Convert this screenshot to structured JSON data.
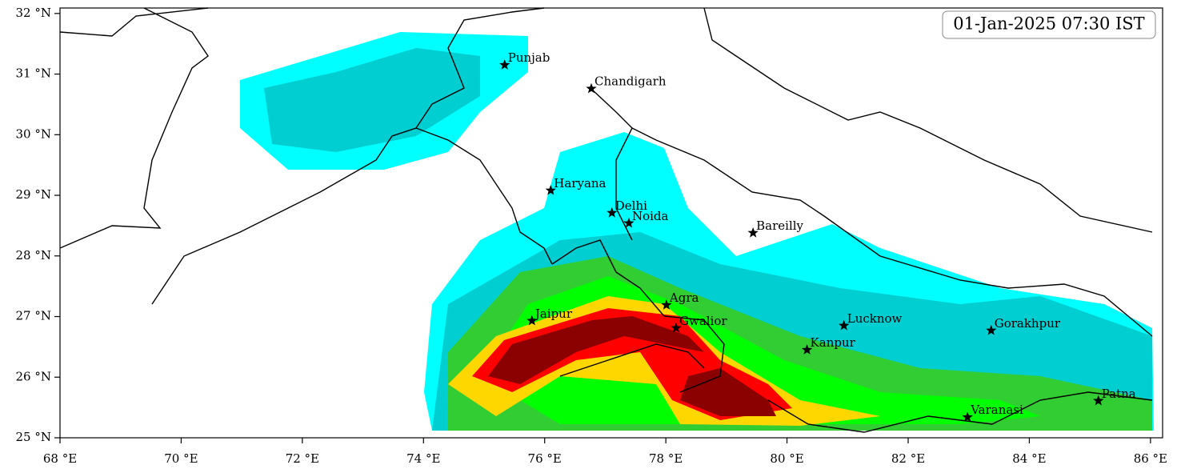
{
  "chart_data": {
    "type": "map",
    "title": "01-Jan-2025 07:30 IST",
    "xlim": [
      68,
      86.2
    ],
    "ylim": [
      25,
      32.09
    ],
    "xticks": [
      {
        "value": 68,
        "label": "68 °E"
      },
      {
        "value": 70,
        "label": "70 °E"
      },
      {
        "value": 72,
        "label": "72 °E"
      },
      {
        "value": 74,
        "label": "74 °E"
      },
      {
        "value": 76,
        "label": "76 °E"
      },
      {
        "value": 78,
        "label": "78 °E"
      },
      {
        "value": 80,
        "label": "80 °E"
      },
      {
        "value": 82,
        "label": "82 °E"
      },
      {
        "value": 84,
        "label": "84 °E"
      },
      {
        "value": 86,
        "label": "86 °E"
      }
    ],
    "yticks": [
      {
        "value": 25,
        "label": "25 °N"
      },
      {
        "value": 26,
        "label": "26 °N"
      },
      {
        "value": 27,
        "label": "27 °N"
      },
      {
        "value": 28,
        "label": "28 °N"
      },
      {
        "value": 29,
        "label": "29 °N"
      },
      {
        "value": 30,
        "label": "30 °N"
      },
      {
        "value": 31,
        "label": "31 °N"
      },
      {
        "value": 32,
        "label": "32 °N"
      }
    ],
    "cities": [
      {
        "name": "Punjab",
        "lon": 75.34,
        "lat": 31.15
      },
      {
        "name": "Chandigarh",
        "lon": 76.77,
        "lat": 30.76
      },
      {
        "name": "Haryana",
        "lon": 76.1,
        "lat": 29.08
      },
      {
        "name": "Delhi",
        "lon": 77.11,
        "lat": 28.71
      },
      {
        "name": "Noida",
        "lon": 77.39,
        "lat": 28.54
      },
      {
        "name": "Bareilly",
        "lon": 79.44,
        "lat": 28.38
      },
      {
        "name": "Agra",
        "lon": 78.01,
        "lat": 27.19
      },
      {
        "name": "Jaipur",
        "lon": 75.79,
        "lat": 26.93
      },
      {
        "name": "Gwalior",
        "lon": 78.17,
        "lat": 26.81
      },
      {
        "name": "Lucknow",
        "lon": 80.94,
        "lat": 26.85
      },
      {
        "name": "Kanpur",
        "lon": 80.33,
        "lat": 26.45
      },
      {
        "name": "Gorakhpur",
        "lon": 83.37,
        "lat": 26.77
      },
      {
        "name": "Varanasi",
        "lon": 82.98,
        "lat": 25.34
      },
      {
        "name": "Patna",
        "lon": 85.14,
        "lat": 25.61
      }
    ]
  }
}
